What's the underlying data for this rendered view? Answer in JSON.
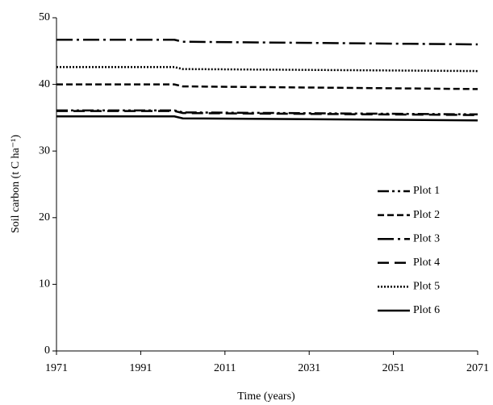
{
  "chart_data": {
    "type": "line",
    "x_label": "Time (years)",
    "y_label": "Soil carbon (t C ha⁻¹)",
    "x": [
      1971,
      1999,
      2001,
      2071
    ],
    "xlim": [
      1971,
      2071
    ],
    "xticks": [
      1971,
      1991,
      2011,
      2031,
      2051,
      2071
    ],
    "ylim": [
      0,
      50
    ],
    "yticks": [
      0,
      10,
      20,
      30,
      40,
      50
    ],
    "legend": "right",
    "series": [
      {
        "name": "Plot 1",
        "color": "#000000",
        "dash": "14 4 3 4 3 4",
        "values": [
          36.1,
          36.1,
          35.8,
          35.5
        ]
      },
      {
        "name": "Plot 2",
        "color": "#000000",
        "dash": "8 4",
        "values": [
          40.0,
          40.0,
          39.7,
          39.3
        ]
      },
      {
        "name": "Plot 3",
        "color": "#000000",
        "dash": "20 5 3 5",
        "values": [
          46.7,
          46.7,
          46.4,
          46.0
        ]
      },
      {
        "name": "Plot 4",
        "color": "#000000",
        "dash": "14 7",
        "values": [
          36.0,
          36.0,
          35.7,
          35.4
        ]
      },
      {
        "name": "Plot 5",
        "color": "#000000",
        "dash": "2 2",
        "values": [
          42.6,
          42.6,
          42.3,
          42.0
        ]
      },
      {
        "name": "Plot 6",
        "color": "#000000",
        "dash": "none",
        "values": [
          35.2,
          35.2,
          34.9,
          34.6
        ]
      }
    ]
  }
}
